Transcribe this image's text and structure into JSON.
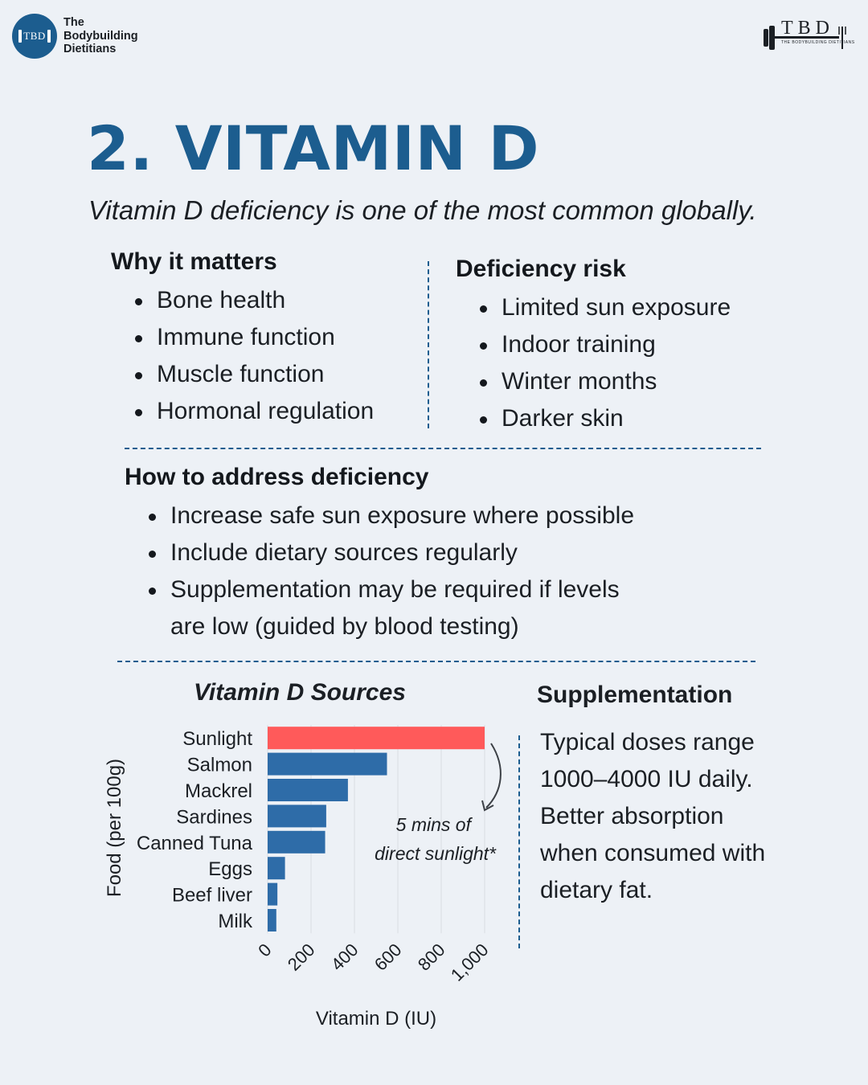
{
  "header": {
    "logo_abbrev": "TBD",
    "brand_lines": [
      "The",
      "Bodybuilding",
      "Dietitians"
    ],
    "right_logo": "TBD",
    "right_logo_sub": "THE BODYBUILDING DIETITIANS"
  },
  "title": "2. VITAMIN D",
  "subtitle": "Vitamin D deficiency is one of the most common globally.",
  "why": {
    "heading": "Why it matters",
    "items": [
      "Bone health",
      "Immune function",
      "Muscle function",
      "Hormonal regulation"
    ]
  },
  "risk": {
    "heading": "Deficiency risk",
    "items": [
      "Limited sun exposure",
      "Indoor training",
      "Winter months",
      "Darker skin"
    ]
  },
  "address": {
    "heading": "How to address deficiency",
    "items": [
      "Increase safe sun exposure where possible",
      "Include dietary sources regularly",
      "Supplementation may be required if levels"
    ],
    "continuation": "are low (guided by blood testing)"
  },
  "chart_data": {
    "type": "bar",
    "orientation": "horizontal",
    "title": "Vitamin D Sources",
    "categories": [
      "Sunlight",
      "Salmon",
      "Mackrel",
      "Sardines",
      "Canned Tuna",
      "Eggs",
      "Beef liver",
      "Milk"
    ],
    "values": [
      1000,
      550,
      370,
      270,
      265,
      80,
      45,
      40
    ],
    "colors": [
      "#ff5a5a",
      "#2e6ca8",
      "#2e6ca8",
      "#2e6ca8",
      "#2e6ca8",
      "#2e6ca8",
      "#2e6ca8",
      "#2e6ca8"
    ],
    "xlabel": "Vitamin D (IU)",
    "ylabel": "Food (per 100g)",
    "xlim": [
      0,
      1000
    ],
    "xticks": [
      0,
      200,
      400,
      600,
      800,
      1000
    ],
    "xtick_labels": [
      "0",
      "200",
      "400",
      "600",
      "800",
      "1,000"
    ],
    "grid": true,
    "annotation": {
      "line1": "5 mins of",
      "line2": "direct sunlight*"
    }
  },
  "supplementation": {
    "heading": "Supplementation",
    "text": "Typical doses range 1000–4000 IU daily. Better absorption when consumed with dietary fat."
  }
}
